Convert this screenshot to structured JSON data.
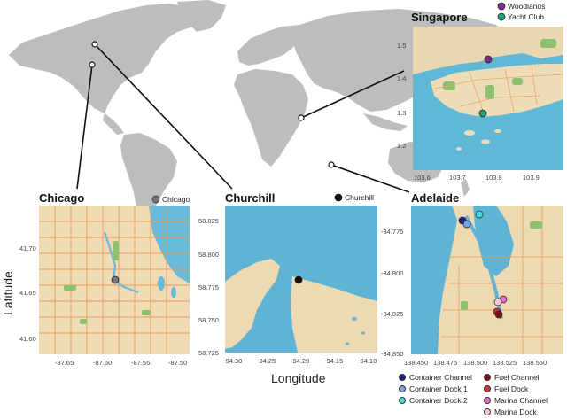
{
  "map": {
    "panels": [
      {
        "id": "singapore",
        "title": "Singapore",
        "x_ticks": [
          "103.6",
          "103.7",
          "103.8",
          "103.9"
        ],
        "y_ticks": [
          "1.5",
          "1.4",
          "1.3",
          "1.2"
        ],
        "legend": [
          {
            "label": "Woodlands",
            "color": "#7b2d8e"
          },
          {
            "label": "Yacht Club",
            "color": "#1e9c7a"
          }
        ]
      },
      {
        "id": "chicago",
        "title": "Chicago",
        "x_ticks": [
          "-87.65",
          "-87.60",
          "-87.55",
          "-87.50"
        ],
        "y_ticks": [
          "41.70",
          "41.65",
          "41.60"
        ],
        "legend": [
          {
            "label": "Chicago",
            "color": "#777777"
          }
        ]
      },
      {
        "id": "churchill",
        "title": "Churchill",
        "x_ticks": [
          "-94.30",
          "-94.25",
          "-94.20",
          "-94.15",
          "-94.10"
        ],
        "y_ticks": [
          "58.825",
          "58.800",
          "58.775",
          "58.750",
          "58.725"
        ],
        "legend": [
          {
            "label": "Churchill",
            "color": "#111111"
          }
        ]
      },
      {
        "id": "adelaide",
        "title": "Adelaide",
        "x_ticks": [
          "138.450",
          "138.475",
          "138.500",
          "138.525",
          "138.550"
        ],
        "y_ticks": [
          "-34.775",
          "-34.800",
          "-34.825",
          "-34.850"
        ]
      }
    ],
    "adelaide_legend": [
      {
        "label": "Container Channel",
        "color": "#1a237e"
      },
      {
        "label": "Fuel Channel",
        "color": "#7b1111"
      },
      {
        "label": "Container Dock 1",
        "color": "#7aa0e0"
      },
      {
        "label": "Fuel Dock",
        "color": "#d32f2f"
      },
      {
        "label": "Container Dock 2",
        "color": "#44e0e0"
      },
      {
        "label": "Marina Channel",
        "color": "#e070c8"
      },
      {
        "label": "Marina Dock",
        "color": "#f8c8d8"
      }
    ],
    "axes": {
      "xlabel": "Longitude",
      "ylabel": "Latitude"
    }
  }
}
